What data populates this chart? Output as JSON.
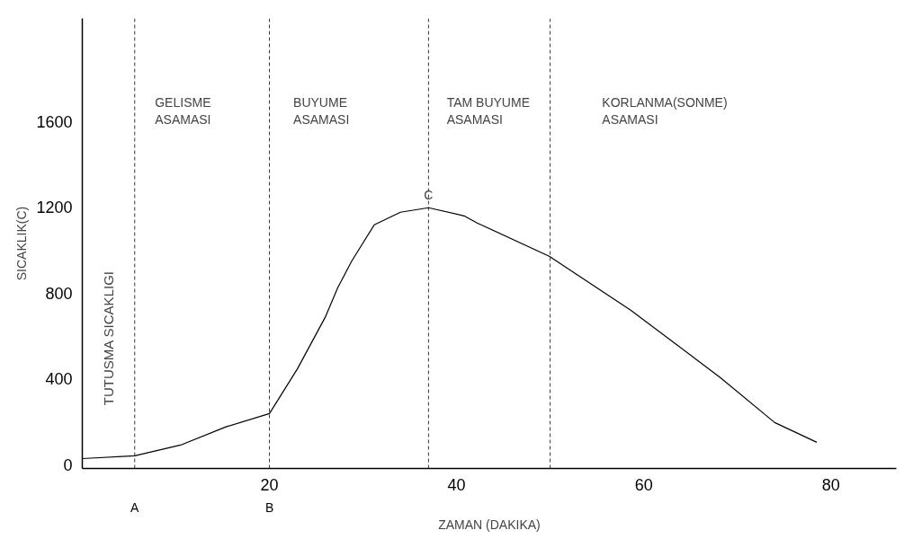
{
  "chart_data": {
    "type": "line",
    "xlabel": "ZAMAN (DAKIKA)",
    "ylabel": "SICAKLIK(C)",
    "xlim": [
      0,
      87
    ],
    "ylim": [
      -17,
      2080
    ],
    "xticks": [
      20,
      40,
      60,
      80
    ],
    "yticks": [
      0,
      400,
      800,
      1200,
      1600
    ],
    "grid": false,
    "marker": "none",
    "line_style": "solid",
    "series": [
      {
        "color": "#000000",
        "x": [
          0,
          5.6,
          10.5,
          15.3,
          20,
          23,
          26,
          27.3,
          28.8,
          31.2,
          34,
          37,
          40.8,
          42.2,
          49.9,
          58.6,
          68.2,
          74,
          78.5
        ],
        "values": [
          29,
          42,
          92,
          176,
          239,
          448,
          691,
          825,
          950,
          1118,
          1177,
          1198,
          1160,
          1127,
          972,
          721,
          406,
          197,
          105
        ]
      }
    ],
    "ref_lines": [
      {
        "axis": "x",
        "value": 5.6,
        "label": "A",
        "line_style": "dashed"
      },
      {
        "axis": "x",
        "value": 20,
        "label": "B",
        "line_style": "dashed"
      },
      {
        "axis": "x",
        "value": 37,
        "line_style": "dashed"
      },
      {
        "axis": "x",
        "value": 50,
        "line_style": "dashed"
      }
    ],
    "annotations": [
      "TUTUSMA SICAKLIGI",
      "GELISME\nASAMASI",
      "BUYUME\nASAMASI",
      "TAM BUYUME\nASAMASI",
      "KORLANMA(SONME)\nASAMASI",
      {
        "text": "C",
        "x": 37,
        "y": 1198
      }
    ]
  }
}
